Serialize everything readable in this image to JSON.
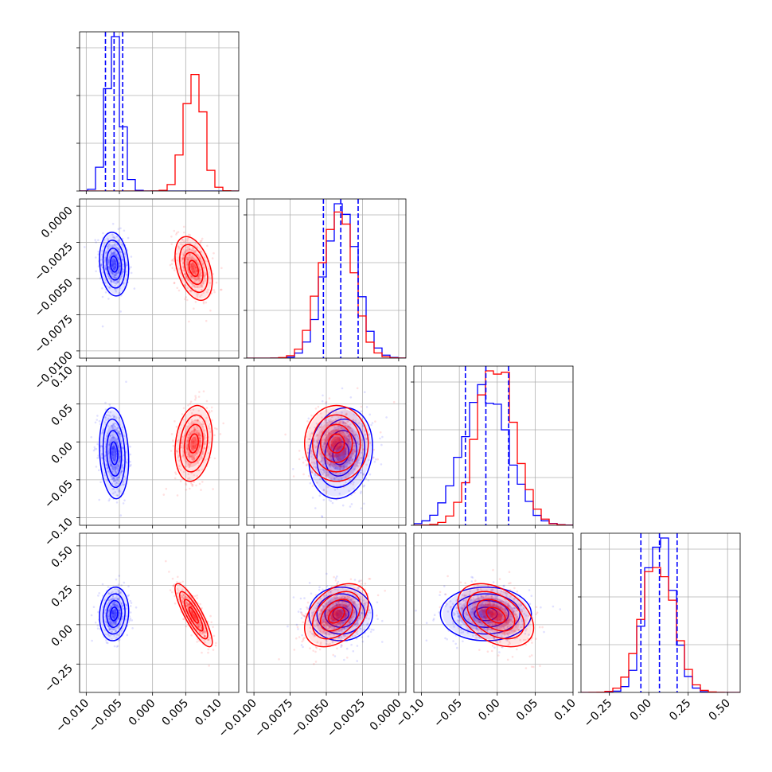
{
  "chart_data": {
    "type": "corner",
    "grid": true,
    "colors": {
      "blue": "#0000ff",
      "red": "#ff0000"
    },
    "series": [
      {
        "color": "#0000ff",
        "means": [
          -0.0058,
          -0.004,
          -0.015,
          0.068
        ],
        "sigmas": [
          0.0011,
          0.0011,
          0.03,
          0.085
        ],
        "correlations": {
          "0-1": -0.15,
          "0-2": -0.15,
          "0-3": 0.1,
          "1-2": 0.15,
          "1-3": 0.0,
          "2-3": 0.0
        },
        "quantiles": [
          [
            -0.0071,
            -0.0058,
            -0.0045
          ],
          [
            -0.0052,
            -0.004,
            -0.0028
          ],
          [
            -0.042,
            -0.015,
            0.015
          ],
          [
            -0.05,
            0.068,
            0.18
          ]
        ]
      },
      {
        "color": "#ff0000",
        "means": [
          0.0062,
          -0.0043,
          -0.002,
          0.06
        ],
        "sigmas": [
          0.0014,
          0.0011,
          0.025,
          0.1
        ],
        "correlations": {
          "0-1": -0.4,
          "0-2": 0.2,
          "0-3": -0.85,
          "1-2": 0.0,
          "1-3": 0.4,
          "2-3": -0.4
        },
        "quantiles": []
      }
    ],
    "axes": [
      {
        "range": [
          -0.011,
          0.013
        ],
        "ticks": [
          -0.01,
          -0.005,
          0.0,
          0.005,
          0.01
        ],
        "tick_labels": [
          "−0.010",
          "−0.005",
          "0.000",
          "0.005",
          "0.010"
        ]
      },
      {
        "range": [
          -0.0105,
          0.0005
        ],
        "ticks": [
          -0.01,
          -0.0075,
          -0.005,
          -0.0025,
          0.0
        ],
        "tick_labels": [
          "−0.0100",
          "−0.0075",
          "−0.0050",
          "−0.0025",
          "0.0000"
        ]
      },
      {
        "range": [
          -0.11,
          0.1
        ],
        "ticks": [
          -0.1,
          -0.05,
          0.0,
          0.05,
          0.1
        ],
        "tick_labels": [
          "−0.10",
          "−0.05",
          "0.00",
          "0.05",
          "0.10"
        ]
      },
      {
        "range": [
          -0.43,
          0.58
        ],
        "ticks": [
          -0.25,
          0.0,
          0.25,
          0.5
        ],
        "tick_labels": [
          "−0.25",
          "0.00",
          "0.25",
          "0.50"
        ]
      }
    ]
  }
}
